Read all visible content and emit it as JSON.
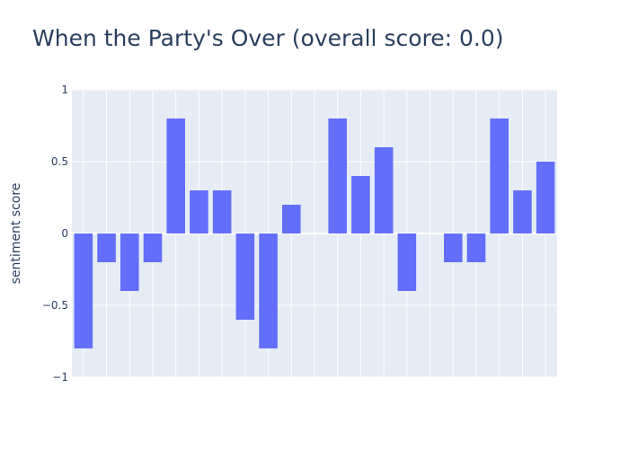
{
  "chart_data": {
    "type": "bar",
    "title": "When the Party's Over (overall score: 0.0)",
    "xlabel": "",
    "ylabel": "sentiment score",
    "ylim": [
      -1,
      1
    ],
    "yticks": [
      {
        "value": 1,
        "label": "1"
      },
      {
        "value": 0.5,
        "label": "0.5"
      },
      {
        "value": 0,
        "label": "0"
      },
      {
        "value": -0.5,
        "label": "−0.5"
      },
      {
        "value": -1,
        "label": "−1"
      }
    ],
    "grid": true,
    "legend": "none",
    "colors": {
      "bar": "#636efa",
      "plot_background": "#e5ecf6",
      "grid": "#ffffff",
      "text": "#2a3f5f"
    },
    "values": [
      -0.8,
      -0.2,
      -0.4,
      -0.2,
      0.8,
      0.3,
      0.3,
      -0.6,
      -0.8,
      0.2,
      0,
      0.8,
      0.4,
      0.6,
      -0.4,
      0,
      -0.2,
      -0.2,
      0.8,
      0.3,
      0.5
    ]
  }
}
